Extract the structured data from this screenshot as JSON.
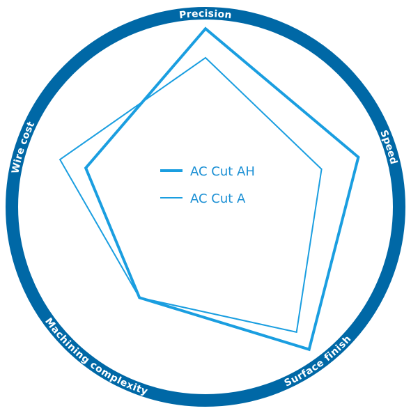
{
  "chart_data": {
    "type": "radar",
    "axes": [
      "Precision",
      "Speed",
      "Surface finish",
      "Machining complexity",
      "Wire cost"
    ],
    "series": [
      {
        "name": "AC Cut AH",
        "values": [
          0.92,
          0.83,
          0.91,
          0.58,
          0.65
        ],
        "stroke_width": 4
      },
      {
        "name": "AC Cut A",
        "values": [
          0.77,
          0.63,
          0.8,
          0.58,
          0.79
        ],
        "stroke_width": 2
      }
    ],
    "range": [
      0,
      1
    ],
    "legend_position": "center-left",
    "colors": {
      "ring": "#0068a6",
      "series": "#1a9ee0",
      "label": "#ffffff",
      "legend_text": "#1a8fd4"
    }
  }
}
